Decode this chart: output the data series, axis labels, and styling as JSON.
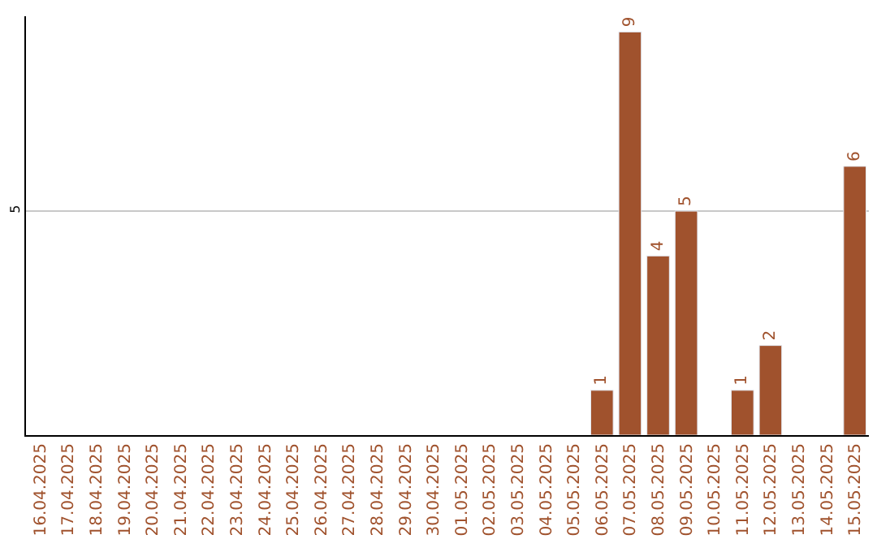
{
  "chart_data": {
    "type": "bar",
    "categories": [
      "16.04.2025",
      "17.04.2025",
      "18.04.2025",
      "19.04.2025",
      "20.04.2025",
      "21.04.2025",
      "22.04.2025",
      "23.04.2025",
      "24.04.2025",
      "25.04.2025",
      "26.04.2025",
      "27.04.2025",
      "28.04.2025",
      "29.04.2025",
      "30.04.2025",
      "01.05.2025",
      "02.05.2025",
      "03.05.2025",
      "04.05.2025",
      "05.05.2025",
      "06.05.2025",
      "07.05.2025",
      "08.05.2025",
      "09.05.2025",
      "10.05.2025",
      "11.05.2025",
      "12.05.2025",
      "13.05.2025",
      "14.05.2025",
      "15.05.2025"
    ],
    "values": [
      null,
      null,
      null,
      null,
      null,
      null,
      null,
      null,
      null,
      null,
      null,
      null,
      null,
      null,
      null,
      null,
      null,
      null,
      null,
      null,
      1,
      9,
      4,
      5,
      null,
      1,
      2,
      null,
      null,
      6
    ],
    "value_labels": [
      null,
      null,
      null,
      null,
      null,
      null,
      null,
      null,
      null,
      null,
      null,
      null,
      null,
      null,
      null,
      null,
      null,
      null,
      null,
      null,
      "1",
      "9",
      "4",
      "5",
      null,
      "1",
      "2",
      null,
      null,
      "6"
    ],
    "color": "#a0522d",
    "ylim": [
      0,
      9.35
    ],
    "yticks": [
      5
    ],
    "grid": "y",
    "legend": false
  }
}
